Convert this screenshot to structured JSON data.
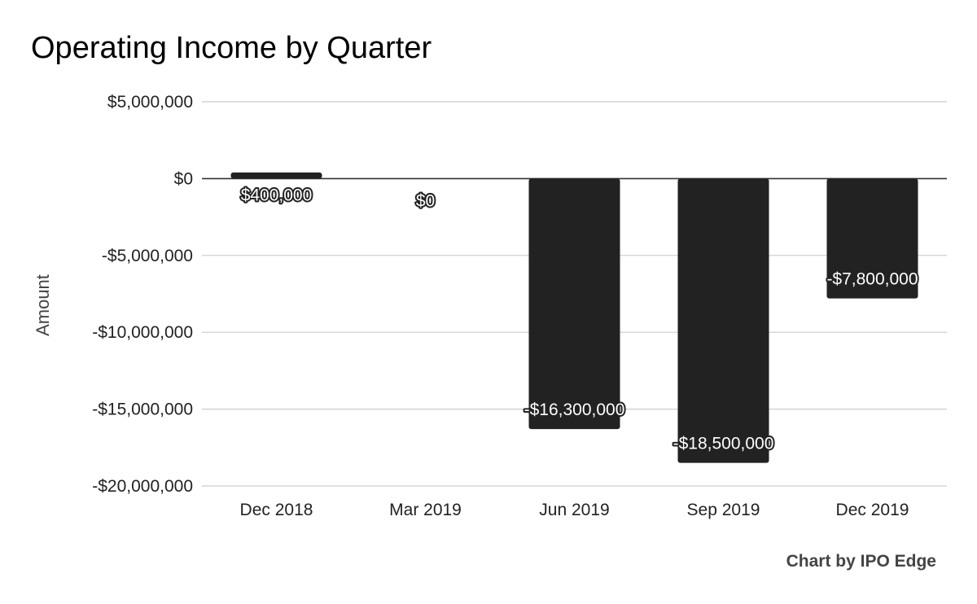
{
  "chart_data": {
    "type": "bar",
    "title": "Operating Income by Quarter",
    "xlabel": "",
    "ylabel": "Amount",
    "categories": [
      "Dec 2018",
      "Mar 2019",
      "Jun 2019",
      "Sep 2019",
      "Dec 2019"
    ],
    "values": [
      400000,
      0,
      -16300000,
      -18500000,
      -7800000
    ],
    "data_labels": [
      "$400,000",
      "$0",
      "-$16,300,000",
      "-$18,500,000",
      "-$7,800,000"
    ],
    "ylim": [
      -20000000,
      5000000
    ],
    "yticks": [
      5000000,
      0,
      -5000000,
      -10000000,
      -15000000,
      -20000000
    ],
    "ytick_labels": [
      "$5,000,000",
      "$0",
      "-$5,000,000",
      "-$10,000,000",
      "-$15,000,000",
      "-$20,000,000"
    ],
    "grid": true,
    "legend": "none",
    "bar_color": "#222222",
    "gridline_color": "#cccccc",
    "credit": "Chart by IPO Edge"
  }
}
